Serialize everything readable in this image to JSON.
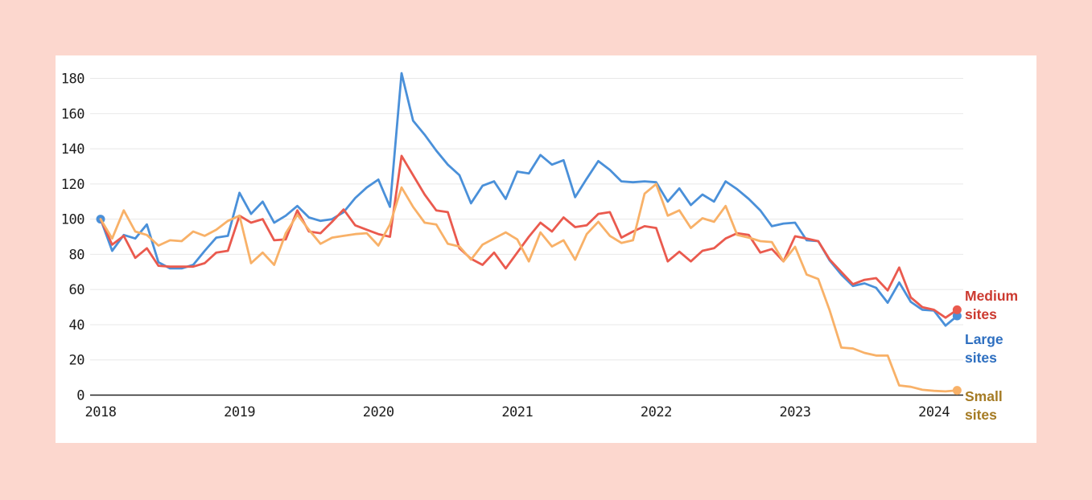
{
  "page": {
    "background_color": "#fcd7ce",
    "panel_background_color": "#ffffff",
    "title": ""
  },
  "chart_data": {
    "type": "line",
    "title": "",
    "xlabel": "",
    "ylabel": "",
    "grid": true,
    "grid_color": "#e8e8e8",
    "axis_color": "#222222",
    "x_axis": {
      "unit": "month",
      "start": "2018-01",
      "end": "2024-03",
      "tick_labels": [
        "2018",
        "2019",
        "2020",
        "2021",
        "2022",
        "2023",
        "2024"
      ],
      "tick_month_indexes": [
        0,
        12,
        24,
        36,
        48,
        60,
        72
      ]
    },
    "y_axis": {
      "ticks": [
        0,
        20,
        40,
        60,
        80,
        100,
        120,
        140,
        160,
        180
      ],
      "range": [
        0,
        190
      ]
    },
    "legend_position": "right-outside-lines",
    "series": [
      {
        "name": "Large sites",
        "short_label": "Large sites",
        "color": "#4a90d9",
        "label_color": "#2e6fc0",
        "start_dot": true,
        "end_dot": true,
        "values": [
          100,
          82,
          91,
          89,
          97,
          75.5,
          72,
          72,
          74,
          82,
          89.5,
          90.5,
          115,
          103,
          110,
          98,
          102,
          107.5,
          101,
          99,
          100,
          104,
          112,
          118,
          122.5,
          107,
          183,
          156,
          148,
          139,
          131,
          125,
          109,
          119,
          121.5,
          111.5,
          127,
          126,
          136.5,
          131,
          133.5,
          112.5,
          123,
          133,
          128,
          121.5,
          121,
          121.5,
          121,
          110,
          117.5,
          108,
          114,
          110,
          121.5,
          117,
          111.5,
          105,
          96,
          97.5,
          98,
          88,
          87.5,
          76.5,
          68.5,
          62,
          63.5,
          61,
          52.5,
          64,
          53,
          48.5,
          48,
          39.5,
          45
        ]
      },
      {
        "name": "Medium sites",
        "short_label": "Medium sites",
        "color": "#ea5a4e",
        "label_color": "#cc3a30",
        "start_dot": false,
        "end_dot": true,
        "values": [
          100,
          85.5,
          90.5,
          78,
          83.5,
          73.5,
          73,
          73,
          73,
          75,
          81,
          82,
          102,
          98,
          100,
          88,
          88.5,
          105,
          93,
          92,
          98.5,
          105.5,
          96.5,
          94,
          91.5,
          90,
          136,
          125,
          114,
          105,
          104,
          83.5,
          77.5,
          74,
          81,
          72,
          81,
          90,
          98,
          93,
          101,
          95.5,
          96.5,
          103,
          104,
          89.5,
          93,
          96,
          95,
          76,
          81.5,
          76,
          82,
          83.5,
          89,
          92,
          91,
          81,
          83,
          76,
          90.3,
          89,
          87.5,
          77,
          70,
          63,
          65.5,
          66.5,
          59.5,
          72.5,
          55.5,
          50,
          48.5,
          44,
          48.5
        ]
      },
      {
        "name": "Small sites",
        "short_label": "Small sites",
        "color": "#f8b168",
        "label_color": "#a57b24",
        "start_dot": false,
        "end_dot": true,
        "values": [
          100,
          89,
          105,
          93,
          91,
          85,
          88,
          87.5,
          93,
          90.5,
          94,
          99,
          102,
          75,
          81,
          74,
          92,
          102.5,
          94,
          86,
          89.5,
          90.5,
          91.5,
          92,
          85,
          97,
          118,
          107,
          98,
          97,
          86,
          84.5,
          77,
          85.5,
          89,
          92.5,
          88.5,
          76,
          92.5,
          84.5,
          88,
          77,
          91.5,
          98.5,
          90.5,
          86.5,
          88,
          114.5,
          120,
          102,
          105,
          95,
          100.5,
          98.5,
          107.5,
          91,
          89.5,
          87.5,
          87,
          76,
          84.3,
          68.5,
          66,
          48,
          27,
          26.5,
          24,
          22.5,
          22.5,
          5.5,
          4.7,
          3,
          2.4,
          2.1,
          2.7
        ]
      }
    ]
  },
  "legend": {
    "medium_label": "Medium sites",
    "large_label": "Large sites",
    "small_label": "Small sites"
  }
}
